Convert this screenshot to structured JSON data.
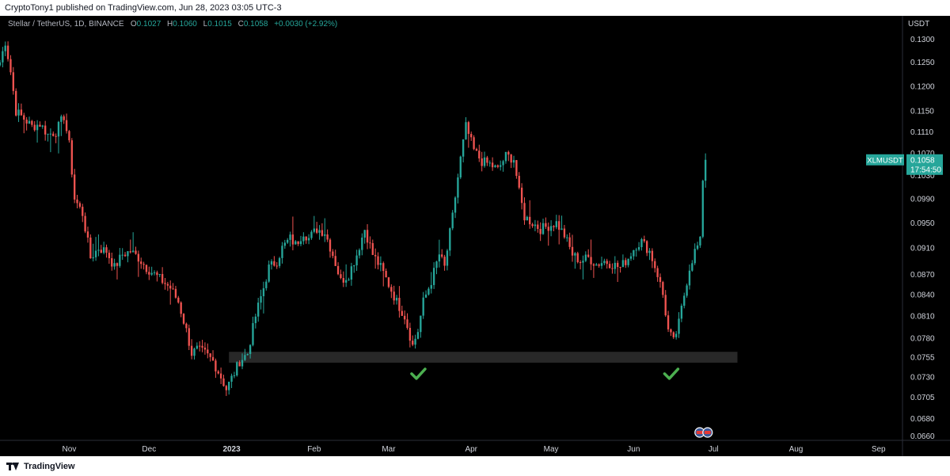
{
  "header": {
    "publish_line": "CryptoTony1 published on TradingView.com, Jun 28, 2023 03:05 UTC-3"
  },
  "legend": {
    "symbol": "Stellar / TetherUS, 1D, BINANCE",
    "o_label": "O",
    "o_value": "0.1027",
    "h_label": "H",
    "h_value": "0.1060",
    "l_label": "L",
    "l_value": "0.1015",
    "c_label": "C",
    "c_value": "0.1058",
    "change": "+0.0030 (+2.92%)"
  },
  "footer": {
    "brand": "TradingView"
  },
  "colors": {
    "up": "#26a69a",
    "down": "#ef5350",
    "background": "#000000",
    "axis_text": "#d1d4dc",
    "check": "#4caf50",
    "price_tag": "#26a69a"
  },
  "chart_data": {
    "type": "candlestick",
    "symbol": "XLMUSDT",
    "currency_label": "USDT",
    "price_tag": {
      "symbol": "XLMUSDT",
      "price": "0.1058",
      "countdown": "17:54:50"
    },
    "y_ticks": [
      "0.1300",
      "0.1250",
      "0.1200",
      "0.1150",
      "0.1110",
      "0.1070",
      "0.1030",
      "0.0990",
      "0.0950",
      "0.0910",
      "0.0870",
      "0.0840",
      "0.0810",
      "0.0780",
      "0.0755",
      "0.0730",
      "0.0705",
      "0.0680",
      "0.0660"
    ],
    "y_scale": "log",
    "ylim": [
      0.0655,
      0.1335
    ],
    "x_ticks": [
      {
        "label": "Nov",
        "date": "2022-11-01",
        "bold": false
      },
      {
        "label": "Dec",
        "date": "2022-12-01",
        "bold": false
      },
      {
        "label": "2023",
        "date": "2023-01-01",
        "bold": true
      },
      {
        "label": "Feb",
        "date": "2023-02-01",
        "bold": false
      },
      {
        "label": "Mar",
        "date": "2023-03-01",
        "bold": false
      },
      {
        "label": "Apr",
        "date": "2023-04-01",
        "bold": false
      },
      {
        "label": "May",
        "date": "2023-05-01",
        "bold": false
      },
      {
        "label": "Jun",
        "date": "2023-06-01",
        "bold": false
      },
      {
        "label": "Jul",
        "date": "2023-07-01",
        "bold": false
      },
      {
        "label": "Aug",
        "date": "2023-08-01",
        "bold": false
      },
      {
        "label": "Sep",
        "date": "2023-09-01",
        "bold": false
      }
    ],
    "xlim": [
      "2022-10-06",
      "2023-09-10"
    ],
    "support_zone": {
      "low": 0.0748,
      "high": 0.0762,
      "from": "2022-12-31",
      "to": "2023-07-10"
    },
    "check_marks": [
      "2023-03-12",
      "2023-06-15"
    ],
    "close_path": [
      [
        "2022-10-06",
        0.125
      ],
      [
        "2022-10-08",
        0.1295
      ],
      [
        "2022-10-10",
        0.123
      ],
      [
        "2022-10-12",
        0.115
      ],
      [
        "2022-10-15",
        0.1135
      ],
      [
        "2022-10-18",
        0.112
      ],
      [
        "2022-10-21",
        0.1125
      ],
      [
        "2022-10-24",
        0.1105
      ],
      [
        "2022-10-27",
        0.111
      ],
      [
        "2022-10-30",
        0.114
      ],
      [
        "2022-11-01",
        0.1085
      ],
      [
        "2022-11-03",
        0.099
      ],
      [
        "2022-11-06",
        0.0965
      ],
      [
        "2022-11-09",
        0.0895
      ],
      [
        "2022-11-12",
        0.091
      ],
      [
        "2022-11-15",
        0.0905
      ],
      [
        "2022-11-18",
        0.088
      ],
      [
        "2022-11-21",
        0.09
      ],
      [
        "2022-11-24",
        0.0905
      ],
      [
        "2022-11-27",
        0.0895
      ],
      [
        "2022-11-30",
        0.088
      ],
      [
        "2022-12-03",
        0.087
      ],
      [
        "2022-12-06",
        0.086
      ],
      [
        "2022-12-09",
        0.085
      ],
      [
        "2022-12-12",
        0.083
      ],
      [
        "2022-12-15",
        0.079
      ],
      [
        "2022-12-17",
        0.076
      ],
      [
        "2022-12-19",
        0.0765
      ],
      [
        "2022-12-22",
        0.076
      ],
      [
        "2022-12-25",
        0.075
      ],
      [
        "2022-12-28",
        0.073
      ],
      [
        "2022-12-30",
        0.0715
      ],
      [
        "2023-01-02",
        0.0735
      ],
      [
        "2023-01-04",
        0.075
      ],
      [
        "2023-01-07",
        0.076
      ],
      [
        "2023-01-10",
        0.081
      ],
      [
        "2023-01-13",
        0.085
      ],
      [
        "2023-01-15",
        0.088
      ],
      [
        "2023-01-18",
        0.089
      ],
      [
        "2023-01-20",
        0.091
      ],
      [
        "2023-01-23",
        0.0925
      ],
      [
        "2023-01-25",
        0.0915
      ],
      [
        "2023-01-28",
        0.0935
      ],
      [
        "2023-01-30",
        0.0925
      ],
      [
        "2023-02-02",
        0.094
      ],
      [
        "2023-02-05",
        0.0935
      ],
      [
        "2023-02-08",
        0.09
      ],
      [
        "2023-02-11",
        0.086
      ],
      [
        "2023-02-14",
        0.087
      ],
      [
        "2023-02-17",
        0.09
      ],
      [
        "2023-02-20",
        0.094
      ],
      [
        "2023-02-23",
        0.09
      ],
      [
        "2023-02-26",
        0.088
      ],
      [
        "2023-03-01",
        0.0855
      ],
      [
        "2023-03-04",
        0.083
      ],
      [
        "2023-03-07",
        0.081
      ],
      [
        "2023-03-10",
        0.077
      ],
      [
        "2023-03-12",
        0.079
      ],
      [
        "2023-03-14",
        0.083
      ],
      [
        "2023-03-17",
        0.086
      ],
      [
        "2023-03-20",
        0.09
      ],
      [
        "2023-03-22",
        0.088
      ],
      [
        "2023-03-25",
        0.096
      ],
      [
        "2023-03-28",
        0.106
      ],
      [
        "2023-03-30",
        0.112
      ],
      [
        "2023-04-02",
        0.1075
      ],
      [
        "2023-04-05",
        0.1055
      ],
      [
        "2023-04-08",
        0.105
      ],
      [
        "2023-04-11",
        0.104
      ],
      [
        "2023-04-14",
        0.1065
      ],
      [
        "2023-04-17",
        0.106
      ],
      [
        "2023-04-19",
        0.1
      ],
      [
        "2023-04-21",
        0.096
      ],
      [
        "2023-04-24",
        0.095
      ],
      [
        "2023-04-27",
        0.094
      ],
      [
        "2023-04-30",
        0.0945
      ],
      [
        "2023-05-03",
        0.095
      ],
      [
        "2023-05-06",
        0.093
      ],
      [
        "2023-05-09",
        0.09
      ],
      [
        "2023-05-12",
        0.089
      ],
      [
        "2023-05-15",
        0.0895
      ],
      [
        "2023-05-18",
        0.0885
      ],
      [
        "2023-05-21",
        0.089
      ],
      [
        "2023-05-24",
        0.0885
      ],
      [
        "2023-05-27",
        0.088
      ],
      [
        "2023-05-30",
        0.0895
      ],
      [
        "2023-06-02",
        0.0915
      ],
      [
        "2023-06-04",
        0.092
      ],
      [
        "2023-06-07",
        0.0905
      ],
      [
        "2023-06-10",
        0.087
      ],
      [
        "2023-06-12",
        0.084
      ],
      [
        "2023-06-14",
        0.079
      ],
      [
        "2023-06-16",
        0.0775
      ],
      [
        "2023-06-18",
        0.08
      ],
      [
        "2023-06-20",
        0.084
      ],
      [
        "2023-06-22",
        0.088
      ],
      [
        "2023-06-24",
        0.0905
      ],
      [
        "2023-06-26",
        0.092
      ],
      [
        "2023-06-27",
        0.1025
      ],
      [
        "2023-06-28",
        0.1058
      ]
    ]
  }
}
